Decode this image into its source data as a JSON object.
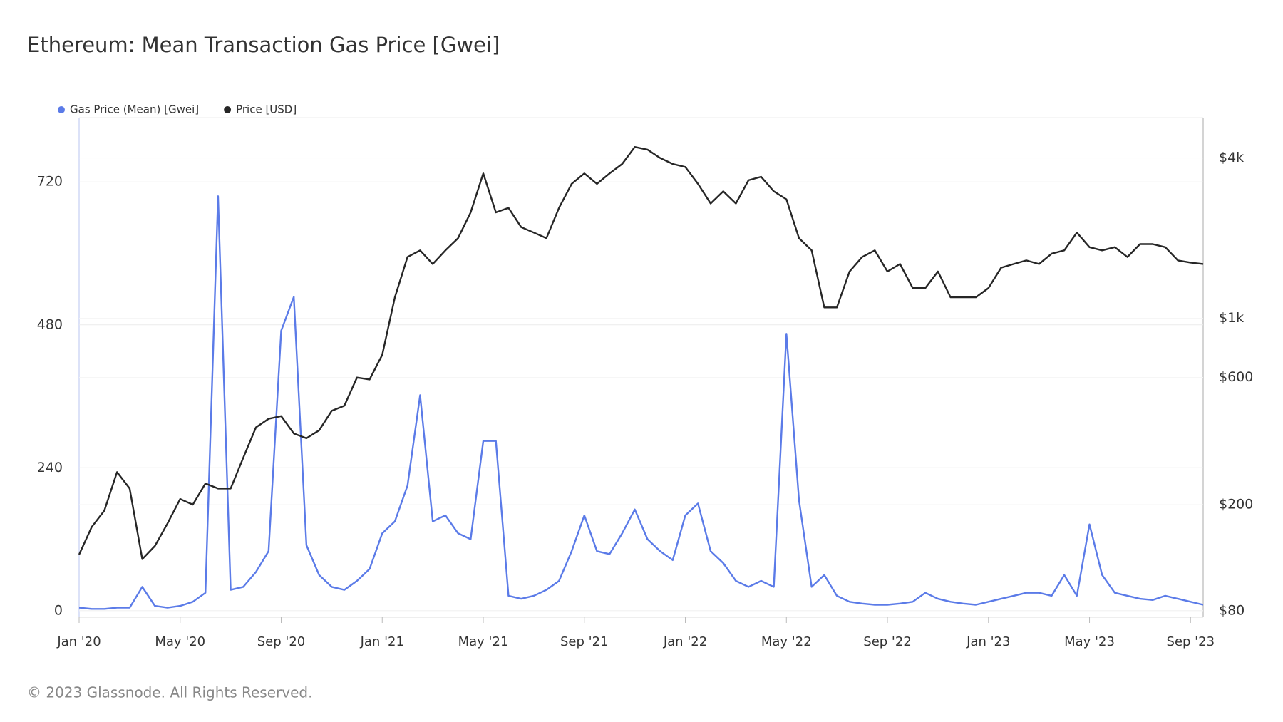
{
  "chart_data": {
    "type": "line",
    "title": "Ethereum: Mean Transaction Gas Price [Gwei]",
    "footer": "© 2023 Glassnode. All Rights Reserved.",
    "categories": [
      "Jan '20",
      null,
      null,
      null,
      null,
      null,
      null,
      null,
      "May '20",
      null,
      null,
      null,
      null,
      null,
      null,
      null,
      "Sep '20",
      null,
      null,
      null,
      null,
      null,
      null,
      null,
      "Jan '21",
      null,
      null,
      null,
      null,
      null,
      null,
      null,
      "May '21",
      null,
      null,
      null,
      null,
      null,
      null,
      null,
      "Sep '21",
      null,
      null,
      null,
      null,
      null,
      null,
      null,
      "Jan '22",
      null,
      null,
      null,
      null,
      null,
      null,
      null,
      "May '22",
      null,
      null,
      null,
      null,
      null,
      null,
      null,
      "Sep '22",
      null,
      null,
      null,
      null,
      null,
      null,
      null,
      "Jan '23",
      null,
      null,
      null,
      null,
      null,
      null,
      null,
      "May '23",
      null,
      null,
      null,
      null,
      null,
      null,
      null,
      "Sep '23",
      null
    ],
    "series": [
      {
        "name": "Gas Price (Mean) [Gwei]",
        "color": "#5b7be8",
        "axis": "y",
        "values": [
          5,
          3,
          3,
          5,
          5,
          40,
          8,
          5,
          8,
          15,
          30,
          696,
          35,
          40,
          65,
          100,
          470,
          527,
          110,
          60,
          40,
          35,
          50,
          70,
          130,
          150,
          210,
          362,
          150,
          160,
          130,
          120,
          285,
          285,
          25,
          20,
          25,
          35,
          50,
          100,
          160,
          100,
          95,
          130,
          170,
          120,
          100,
          85,
          160,
          180,
          100,
          80,
          50,
          40,
          50,
          40,
          465,
          185,
          40,
          60,
          25,
          15,
          12,
          10,
          10,
          12,
          15,
          30,
          20,
          15,
          12,
          10,
          15,
          20,
          25,
          30,
          30,
          25,
          60,
          25,
          145,
          60,
          30,
          25,
          20,
          18,
          25,
          20,
          15,
          10
        ]
      },
      {
        "name": "Price [USD]",
        "color": "#262626",
        "axis": "y2",
        "values": [
          130,
          165,
          190,
          265,
          230,
          125,
          140,
          170,
          210,
          200,
          240,
          230,
          230,
          300,
          390,
          420,
          430,
          370,
          355,
          380,
          450,
          470,
          600,
          590,
          730,
          1200,
          1700,
          1800,
          1600,
          1800,
          2000,
          2500,
          3500,
          2500,
          2600,
          2200,
          2100,
          2000,
          2600,
          3200,
          3500,
          3200,
          3500,
          3800,
          4400,
          4300,
          4000,
          3800,
          3700,
          3200,
          2700,
          3000,
          2700,
          3300,
          3400,
          3000,
          2800,
          2000,
          1800,
          1100,
          1100,
          1500,
          1700,
          1800,
          1500,
          1600,
          1300,
          1300,
          1500,
          1200,
          1200,
          1200,
          1300,
          1550,
          1600,
          1650,
          1600,
          1750,
          1800,
          2100,
          1850,
          1800,
          1850,
          1700,
          1900,
          1900,
          1850,
          1650,
          1620,
          1600
        ]
      }
    ],
    "ylim": [
      -11,
      828
    ],
    "yticks": [
      0,
      240,
      480,
      720
    ],
    "y2lim": [
      75.6,
      5670
    ],
    "y2scale": "log",
    "y2ticks": [
      {
        "value": 80,
        "label": "$80"
      },
      {
        "value": 200,
        "label": "$200"
      },
      {
        "value": 600,
        "label": "$600"
      },
      {
        "value": 1000,
        "label": "$1k"
      },
      {
        "value": 4000,
        "label": "$4k"
      }
    ],
    "grid": true
  }
}
